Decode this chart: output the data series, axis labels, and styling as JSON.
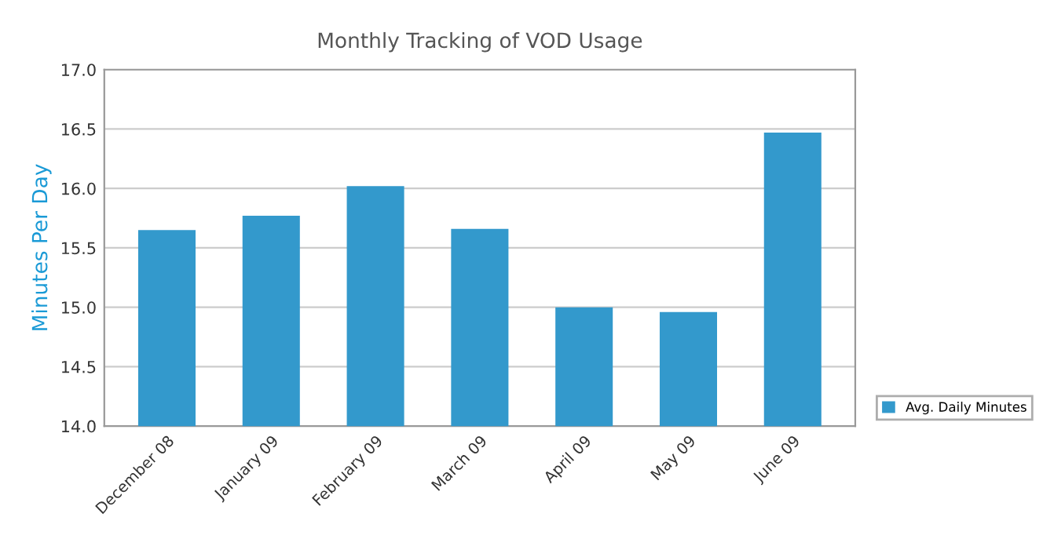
{
  "chart_data": {
    "type": "bar",
    "title": "Monthly Tracking of VOD Usage",
    "ylabel": "Minutes Per Day",
    "categories": [
      "December 08",
      "January 09",
      "February 09",
      "March 09",
      "April 09",
      "May 09",
      "June 09"
    ],
    "series": [
      {
        "name": "Avg. Daily Minutes",
        "color": "#3399cc",
        "values": [
          15.65,
          15.77,
          16.02,
          15.66,
          15.0,
          14.96,
          16.47
        ]
      }
    ],
    "ylim": [
      14.0,
      17.0
    ],
    "yticks": [
      {
        "value": 14.0,
        "label": "14.0"
      },
      {
        "value": 14.5,
        "label": "14.5"
      },
      {
        "value": 15.0,
        "label": "15.0"
      },
      {
        "value": 15.5,
        "label": "15.5"
      },
      {
        "value": 16.0,
        "label": "16.0"
      },
      {
        "value": 16.5,
        "label": "16.5"
      },
      {
        "value": 17.0,
        "label": "17.0"
      }
    ],
    "grid": "y",
    "legend": "right"
  }
}
